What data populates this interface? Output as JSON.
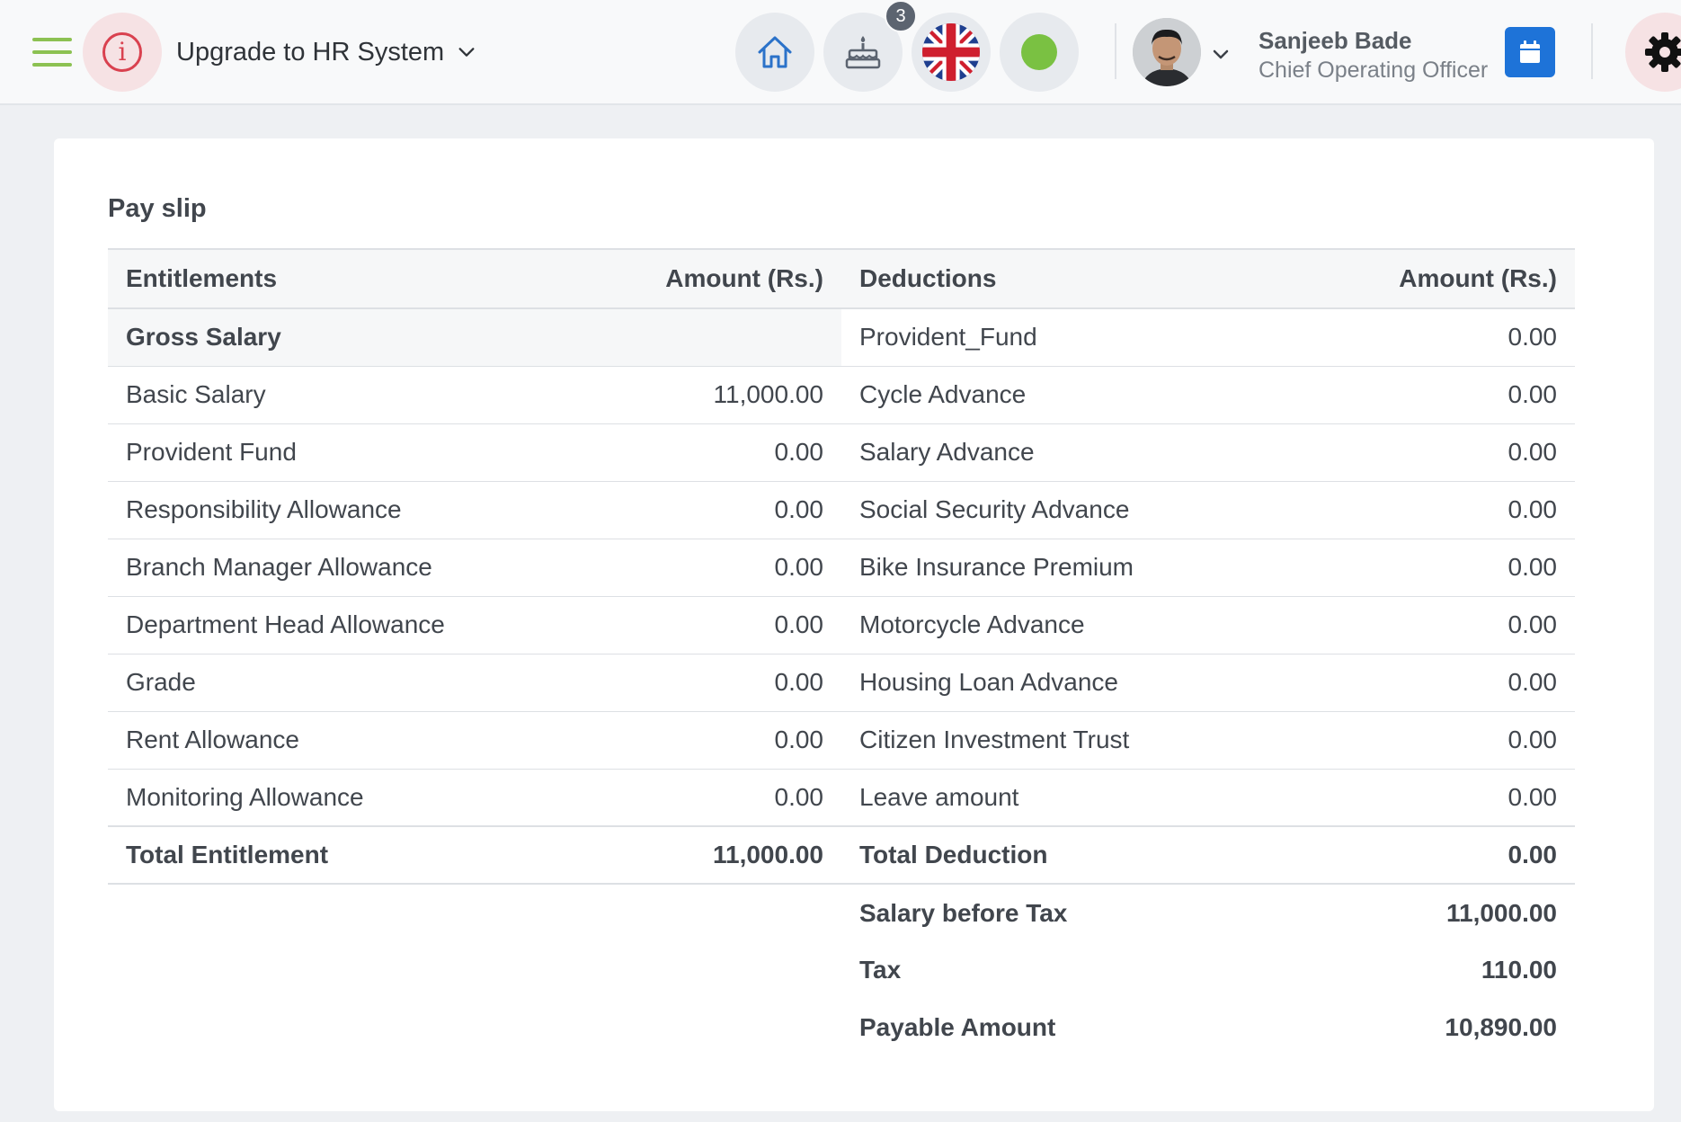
{
  "header": {
    "upgrade_label": "Upgrade to HR System",
    "notification_count": "3",
    "user": {
      "name": "Sanjeeb Bade",
      "role": "Chief Operating Officer"
    },
    "status_color": "#7ac142",
    "accent_color": "#8cc152",
    "icons": [
      "menu-icon",
      "info-icon",
      "home-icon",
      "cake-icon",
      "uk-flag-icon",
      "status-dot-icon",
      "calendar-icon",
      "gear-icon"
    ]
  },
  "payslip": {
    "title": "Pay slip",
    "headers": {
      "entitlements": "Entitlements",
      "amount1": "Amount (Rs.)",
      "deductions": "Deductions",
      "amount2": "Amount (Rs.)"
    },
    "gross_label": "Gross Salary",
    "rows": [
      {
        "ent": "",
        "ent_amt": "",
        "ded": "Provident_Fund",
        "ded_amt": "0.00"
      },
      {
        "ent": "Basic Salary",
        "ent_amt": "11,000.00",
        "ded": "Cycle Advance",
        "ded_amt": "0.00"
      },
      {
        "ent": "Provident Fund",
        "ent_amt": "0.00",
        "ded": "Salary Advance",
        "ded_amt": "0.00"
      },
      {
        "ent": "Responsibility Allowance",
        "ent_amt": "0.00",
        "ded": "Social Security Advance",
        "ded_amt": "0.00"
      },
      {
        "ent": "Branch Manager Allowance",
        "ent_amt": "0.00",
        "ded": "Bike Insurance Premium",
        "ded_amt": "0.00"
      },
      {
        "ent": "Department Head Allowance",
        "ent_amt": "0.00",
        "ded": "Motorcycle Advance",
        "ded_amt": "0.00"
      },
      {
        "ent": "Grade",
        "ent_amt": "0.00",
        "ded": "Housing Loan Advance",
        "ded_amt": "0.00"
      },
      {
        "ent": "Rent Allowance",
        "ent_amt": "0.00",
        "ded": "Citizen Investment Trust",
        "ded_amt": "0.00"
      },
      {
        "ent": "Monitoring Allowance",
        "ent_amt": "0.00",
        "ded": "Leave amount",
        "ded_amt": "0.00"
      }
    ],
    "totals": {
      "ent_label": "Total Entitlement",
      "ent_amt": "11,000.00",
      "ded_label": "Total Deduction",
      "ded_amt": "0.00"
    },
    "summary": [
      {
        "label": "Salary before Tax",
        "value": "11,000.00"
      },
      {
        "label": "Tax",
        "value": "110.00"
      },
      {
        "label": "Payable Amount",
        "value": "10,890.00"
      }
    ]
  }
}
